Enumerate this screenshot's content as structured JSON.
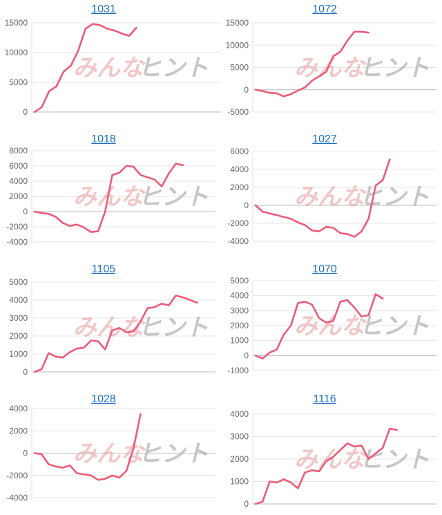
{
  "watermark": {
    "part1": "みんな",
    "part2": "ヒント"
  },
  "colors": {
    "line": "#ee5a78",
    "title": "#1a6ec2",
    "grid": "#e4e4e4",
    "axis": "#bbbbbb"
  },
  "chart_data": [
    {
      "type": "line",
      "title": "1031",
      "ylim": [
        0,
        15000
      ],
      "yticks": [
        0,
        5000,
        10000,
        15000
      ],
      "series": [
        {
          "values": [
            0,
            800,
            3500,
            4300,
            6800,
            7800,
            10300,
            14000,
            14800,
            14600,
            14000,
            13700,
            13200,
            12800,
            14200
          ]
        }
      ]
    },
    {
      "type": "line",
      "title": "1072",
      "ylim": [
        -5000,
        15000
      ],
      "yticks": [
        -5000,
        0,
        5000,
        10000,
        15000
      ],
      "series": [
        {
          "values": [
            0,
            -300,
            -700,
            -800,
            -1500,
            -1000,
            -200,
            500,
            2000,
            3000,
            4000,
            7500,
            8500,
            11000,
            13000,
            13000,
            12800
          ]
        }
      ]
    },
    {
      "type": "line",
      "title": "1018",
      "ylim": [
        -4000,
        8000
      ],
      "yticks": [
        -4000,
        -2000,
        0,
        2000,
        4000,
        6000,
        8000
      ],
      "series": [
        {
          "values": [
            0,
            -200,
            -300,
            -700,
            -1500,
            -1900,
            -1700,
            -2100,
            -2700,
            -2600,
            0,
            4800,
            5100,
            6000,
            5900,
            4800,
            4500,
            4200,
            3300,
            5000,
            6300,
            6100
          ]
        }
      ]
    },
    {
      "type": "line",
      "title": "1027",
      "ylim": [
        -4000,
        6000
      ],
      "yticks": [
        -4000,
        -2000,
        0,
        2000,
        4000,
        6000
      ],
      "series": [
        {
          "values": [
            0,
            -700,
            -900,
            -1100,
            -1300,
            -1500,
            -1900,
            -2200,
            -2800,
            -2900,
            -2400,
            -2500,
            -3100,
            -3200,
            -3500,
            -2900,
            -1500,
            2200,
            2800,
            5100
          ]
        }
      ]
    },
    {
      "type": "line",
      "title": "1105",
      "ylim": [
        0,
        5000
      ],
      "yticks": [
        0,
        1000,
        2000,
        3000,
        4000,
        5000
      ],
      "series": [
        {
          "values": [
            0,
            150,
            1050,
            850,
            800,
            1100,
            1300,
            1350,
            1750,
            1700,
            1250,
            2300,
            2450,
            2200,
            2250,
            2800,
            3550,
            3600,
            3800,
            3700,
            4250,
            4150,
            4000,
            3850
          ]
        }
      ]
    },
    {
      "type": "line",
      "title": "1070",
      "ylim": [
        -1000,
        5000
      ],
      "yticks": [
        -1000,
        0,
        1000,
        2000,
        3000,
        4000,
        5000
      ],
      "series": [
        {
          "values": [
            0,
            -200,
            200,
            400,
            1400,
            2000,
            3500,
            3600,
            3400,
            2500,
            2200,
            2300,
            3600,
            3700,
            3200,
            2600,
            2700,
            4100,
            3800
          ]
        }
      ]
    },
    {
      "type": "line",
      "title": "1028",
      "ylim": [
        -4000,
        4000
      ],
      "yticks": [
        -4000,
        -2000,
        0,
        2000,
        4000
      ],
      "series": [
        {
          "values": [
            0,
            -100,
            -1000,
            -1200,
            -1300,
            -1100,
            -1800,
            -1900,
            -2000,
            -2400,
            -2300,
            -2000,
            -2200,
            -1600,
            400,
            3500
          ]
        }
      ]
    },
    {
      "type": "line",
      "title": "1116",
      "ylim": [
        0,
        4000
      ],
      "yticks": [
        0,
        1000,
        2000,
        3000,
        4000
      ],
      "series": [
        {
          "values": [
            0,
            100,
            1000,
            950,
            1100,
            950,
            700,
            1400,
            1500,
            1450,
            1900,
            2100,
            2400,
            2700,
            2550,
            2600,
            2000,
            2250,
            2500,
            3350,
            3300
          ]
        }
      ]
    }
  ]
}
